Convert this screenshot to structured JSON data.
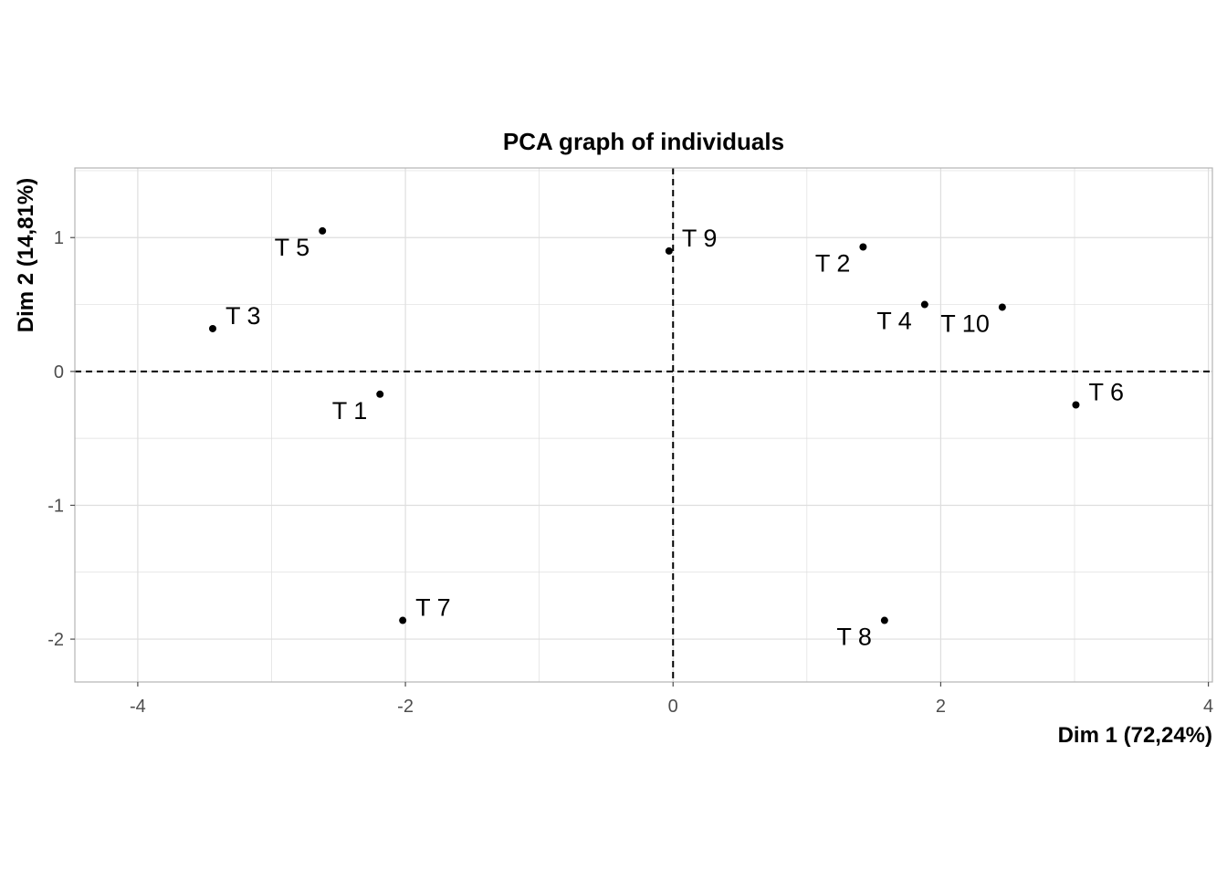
{
  "chart_data": {
    "type": "scatter",
    "title": "PCA graph of individuals",
    "xlabel": "Dim 1 (72,24%)",
    "ylabel": "Dim 2 (14,81%)",
    "xlim": [
      -4.47,
      4.03
    ],
    "ylim": [
      -2.32,
      1.52
    ],
    "x_ticks": [
      -4,
      -2,
      0,
      2,
      4
    ],
    "x_tick_labels": [
      "-4",
      "-2",
      "0",
      "2",
      "4"
    ],
    "y_ticks": [
      -2,
      -1,
      0,
      1
    ],
    "y_tick_labels": [
      "-2",
      "-1",
      "0",
      "1"
    ],
    "grid": true,
    "reference_lines": {
      "x": 0,
      "y": 0,
      "style": "dashed"
    },
    "points": [
      {
        "label": "T 1",
        "x": -2.19,
        "y": -0.17,
        "label_side": "left-below"
      },
      {
        "label": "T 2",
        "x": 1.42,
        "y": 0.93,
        "label_side": "left-below"
      },
      {
        "label": "T 3",
        "x": -3.44,
        "y": 0.32,
        "label_side": "right-above"
      },
      {
        "label": "T 4",
        "x": 1.88,
        "y": 0.5,
        "label_side": "left-below"
      },
      {
        "label": "T 5",
        "x": -2.62,
        "y": 1.05,
        "label_side": "left-below"
      },
      {
        "label": "T 6",
        "x": 3.01,
        "y": -0.25,
        "label_side": "right-above"
      },
      {
        "label": "T 7",
        "x": -2.02,
        "y": -1.86,
        "label_side": "right-above"
      },
      {
        "label": "T 8",
        "x": 1.58,
        "y": -1.86,
        "label_side": "left-below"
      },
      {
        "label": "T 9",
        "x": -0.03,
        "y": 0.9,
        "label_side": "right-above"
      },
      {
        "label": "T 10",
        "x": 2.46,
        "y": 0.48,
        "label_side": "left-below"
      }
    ],
    "colors": {
      "points": "#000000",
      "grid": "#dedede",
      "panel_border": "#b3b3b3",
      "tick_text": "#4d4d4d"
    }
  }
}
